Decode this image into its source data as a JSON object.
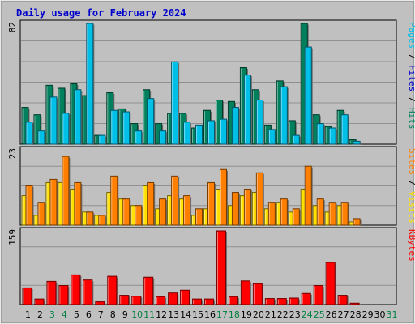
{
  "chart_data": {
    "type": "bar",
    "title": "Daily usage for February 2024",
    "days": [
      "1",
      "2",
      "3",
      "4",
      "5",
      "6",
      "7",
      "8",
      "9",
      "10",
      "11",
      "12",
      "13",
      "14",
      "15",
      "16",
      "17",
      "18",
      "19",
      "20",
      "21",
      "22",
      "23",
      "24",
      "25",
      "26",
      "27",
      "28",
      "29",
      "30",
      "31"
    ],
    "weekend_days": [
      "3",
      "4",
      "10",
      "11",
      "17",
      "18",
      "24",
      "25",
      "31"
    ],
    "colors": {
      "background": "#c0c0c0",
      "frame_bg": "#ececec",
      "title": "#0000cc",
      "hits": "#00805c",
      "files": "#00c0e8",
      "pages": "#00c0e8",
      "visits": "#ffe000",
      "sites": "#ff8000",
      "kbytes": "#ff0000",
      "weekend_label": "#008040",
      "weekday_label": "#000000"
    },
    "panels": [
      {
        "name": "hits-files-pages",
        "max_label": "82",
        "ymax": 82,
        "side_labels": [
          {
            "text": "Pages",
            "color": "#00c0e8"
          },
          {
            "text": " / ",
            "color": "#000000"
          },
          {
            "text": "Files",
            "color": "#0000cc"
          },
          {
            "text": " / ",
            "color": "#000000"
          },
          {
            "text": "Hits",
            "color": "#00805c"
          }
        ],
        "series": [
          {
            "name": "Hits",
            "color": "#00805c",
            "values": [
              25,
              20,
              40,
              38,
              41,
              33,
              6,
              35,
              24,
              14,
              37,
              14,
              21,
              21,
              11,
              23,
              30,
              29,
              52,
              37,
              13,
              43,
              16,
              82,
              20,
              12,
              23,
              3,
              0,
              0,
              0
            ]
          },
          {
            "name": "Files",
            "color": "#00c0e8",
            "values": [
              15,
              9,
              32,
              21,
              37,
              82,
              6,
              23,
              22,
              9,
              31,
              9,
              56,
              15,
              13,
              16,
              17,
              25,
              47,
              30,
              10,
              39,
              6,
              66,
              14,
              11,
              20,
              2,
              0,
              0,
              0
            ]
          }
        ]
      },
      {
        "name": "visits-sites",
        "max_label": "23",
        "ymax": 23,
        "side_labels": [
          {
            "text": "Sites",
            "color": "#ff8000"
          },
          {
            "text": " / ",
            "color": "#000000"
          },
          {
            "text": "Visits",
            "color": "#ffe000"
          }
        ],
        "series": [
          {
            "name": "Visits",
            "color": "#ffe000",
            "values": [
              9,
              3,
              13,
              13,
              11,
              4,
              3,
              10,
              8,
              6,
              12,
              5,
              9,
              8,
              3,
              5,
              11,
              6,
              9,
              10,
              5,
              7,
              4,
              11,
              6,
              4,
              6,
              1,
              0,
              0,
              0
            ]
          },
          {
            "name": "Sites",
            "color": "#ff8000",
            "values": [
              12,
              7,
              14,
              21,
              13,
              4,
              3,
              15,
              8,
              6,
              13,
              8,
              15,
              9,
              5,
              13,
              17,
              10,
              11,
              16,
              7,
              8,
              5,
              18,
              8,
              7,
              7,
              2,
              0,
              0,
              0
            ]
          }
        ]
      },
      {
        "name": "kbytes",
        "max_label": "159",
        "ymax": 159,
        "side_labels": [
          {
            "text": "KBytes",
            "color": "#ff0000"
          }
        ],
        "series": [
          {
            "name": "KBytes",
            "color": "#ff0000",
            "values": [
              36,
              12,
              50,
              41,
              64,
              53,
              6,
              61,
              20,
              18,
              59,
              17,
              25,
              31,
              12,
              12,
              159,
              17,
              51,
              45,
              13,
              13,
              14,
              24,
              41,
              91,
              20,
              3,
              0,
              0,
              0
            ]
          }
        ]
      }
    ]
  }
}
